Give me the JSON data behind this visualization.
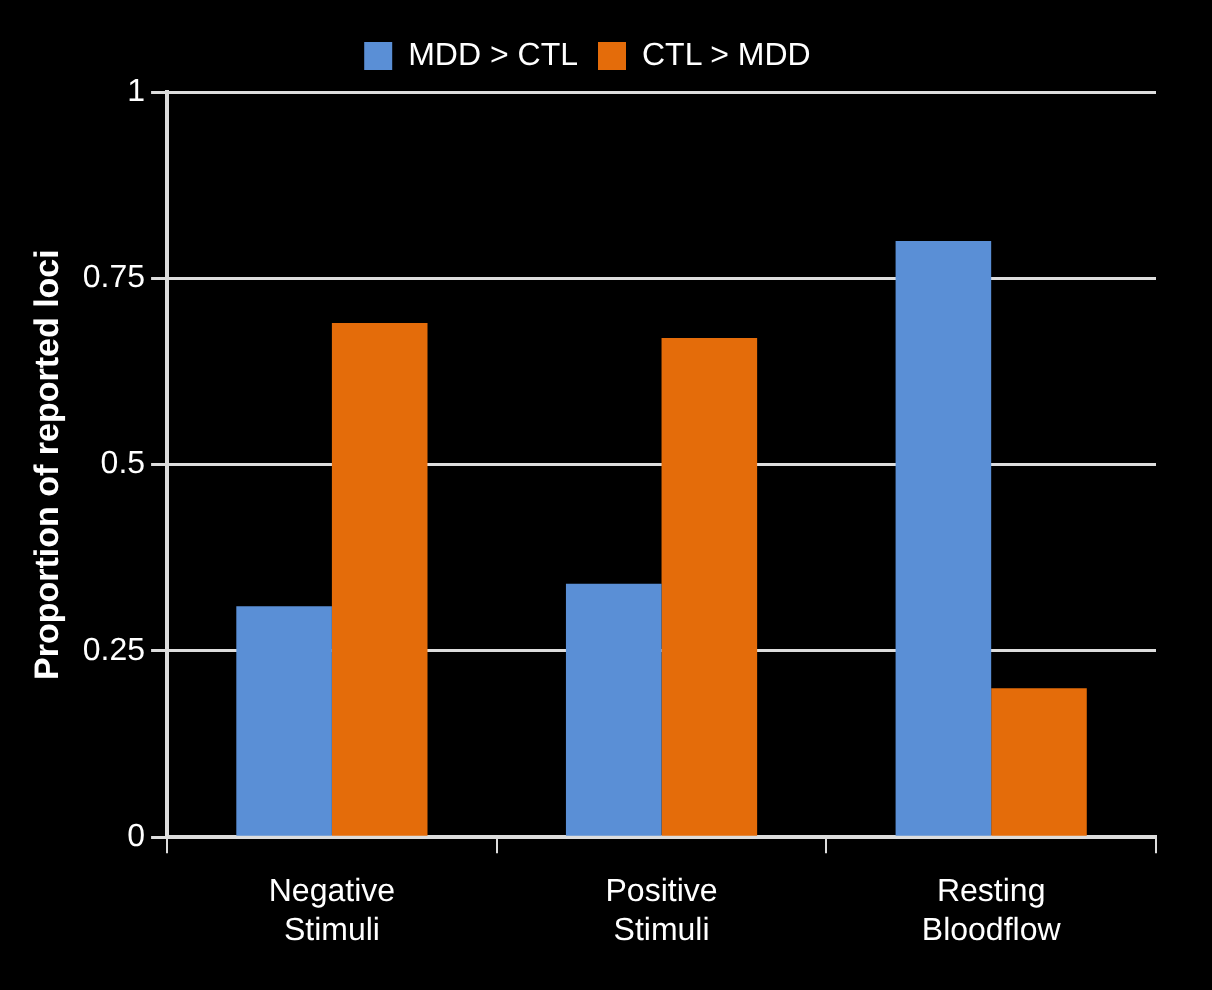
{
  "chart_data": {
    "type": "bar",
    "ylabel": "Proportion of reported loci",
    "categories": [
      "Negative Stimuli",
      "Positive Stimuli",
      "Resting Bloodflow"
    ],
    "series": [
      {
        "name": "MDD > CTL",
        "color": "#5a8fd6",
        "values": [
          0.31,
          0.34,
          0.8
        ]
      },
      {
        "name": "CTL > MDD",
        "color": "#e46c0a",
        "values": [
          0.69,
          0.67,
          0.2
        ]
      }
    ],
    "ylim": [
      0,
      1
    ],
    "yticks": [
      0,
      0.25,
      0.5,
      0.75,
      1
    ],
    "grid": "y",
    "legend": "top"
  }
}
